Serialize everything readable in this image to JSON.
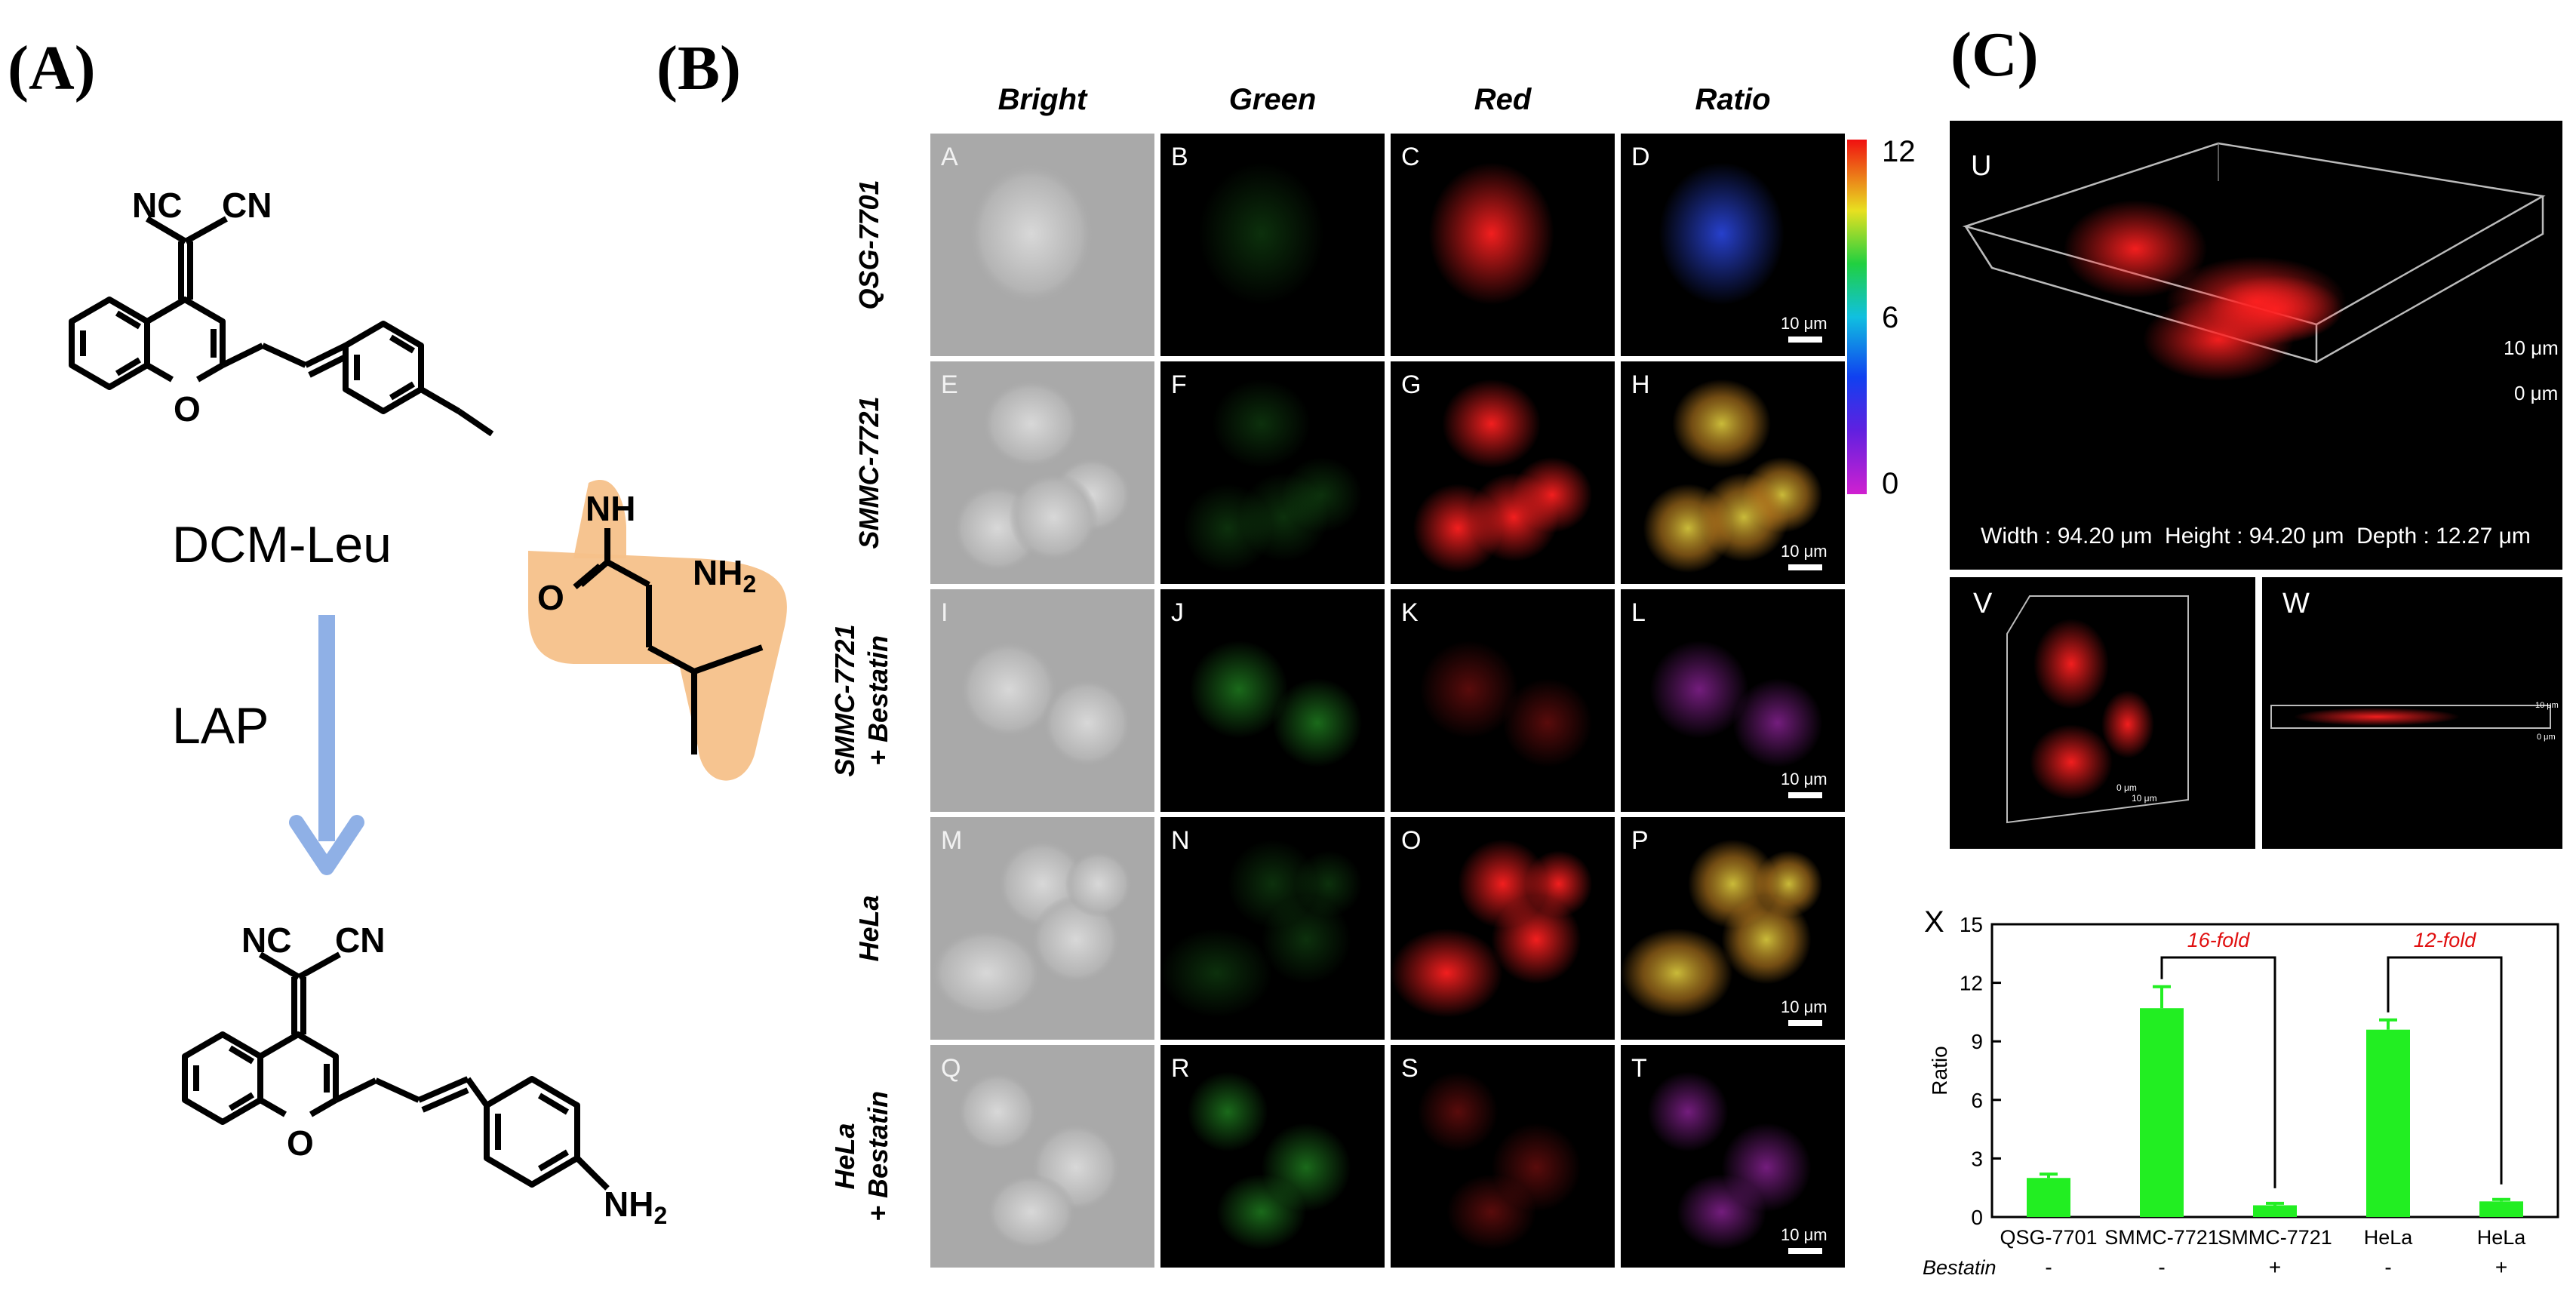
{
  "panel_labels": {
    "a": "(A)",
    "b": "(B)",
    "c": "(C)"
  },
  "chemistry": {
    "top_nitrile_left": "NC",
    "top_nitrile_right": "CN",
    "top_oxygen": "O",
    "amide_nh": "NH",
    "amide_o": "O",
    "amine": "NH",
    "amine_sub": "2",
    "probe_name": "DCM-Leu",
    "enzyme_name": "LAP",
    "bottom_nitrile_left": "NC",
    "bottom_nitrile_right": "CN",
    "bottom_oxygen": "O",
    "bottom_amine": "NH",
    "bottom_amine_sub": "2",
    "highlight_color": "#f6c18a",
    "arrow_color": "#8fb0e6"
  },
  "microscopy": {
    "columns": [
      "Bright",
      "Green",
      "Red",
      "Ratio"
    ],
    "rows": [
      {
        "label": "QSG-7701",
        "label2": "",
        "panels": [
          "A",
          "B",
          "C",
          "D"
        ]
      },
      {
        "label": "SMMC-7721",
        "label2": "",
        "panels": [
          "E",
          "F",
          "G",
          "H"
        ]
      },
      {
        "label": "SMMC-7721",
        "label2": "+ Bestatin",
        "panels": [
          "I",
          "J",
          "K",
          "L"
        ]
      },
      {
        "label": "HeLa",
        "label2": "",
        "panels": [
          "M",
          "N",
          "O",
          "P"
        ]
      },
      {
        "label": "HeLa",
        "label2": "+ Bestatin",
        "panels": [
          "Q",
          "R",
          "S",
          "T"
        ]
      }
    ],
    "scale_bar": "10 μm",
    "colorbar_ticks": [
      "12",
      "6",
      "0"
    ]
  },
  "three_d": {
    "panel_u": "U",
    "depth_top": "10 μm",
    "depth_bottom": "0 μm",
    "dimensions": "Width : 94.20 μm  Height : 94.20 μm  Depth : 12.27 μm",
    "panel_v": "V",
    "panel_w": "W",
    "v_small_1": "0 μm",
    "v_small_2": "10 μm",
    "w_small_1": "10 μm",
    "w_small_2": "0 μm"
  },
  "chart_data": {
    "type": "bar",
    "panel_label": "X",
    "categories": [
      "QSG-7701",
      "SMMC-7721",
      "SMMC-7721",
      "HeLa",
      "HeLa"
    ],
    "bestatin_label": "Bestatin",
    "bestatin_signs": [
      "-",
      "-",
      "+",
      "-",
      "+"
    ],
    "values": [
      2.0,
      10.7,
      0.6,
      9.6,
      0.8
    ],
    "errors": [
      0.2,
      1.1,
      0.1,
      0.5,
      0.1
    ],
    "ylabel": "Ratio",
    "ylim": [
      0,
      15
    ],
    "yticks": [
      0,
      3,
      6,
      9,
      12,
      15
    ],
    "annotations": [
      "16-fold",
      "12-fold"
    ],
    "bar_color": "#22ee22",
    "annotation_color": "#e01010"
  }
}
